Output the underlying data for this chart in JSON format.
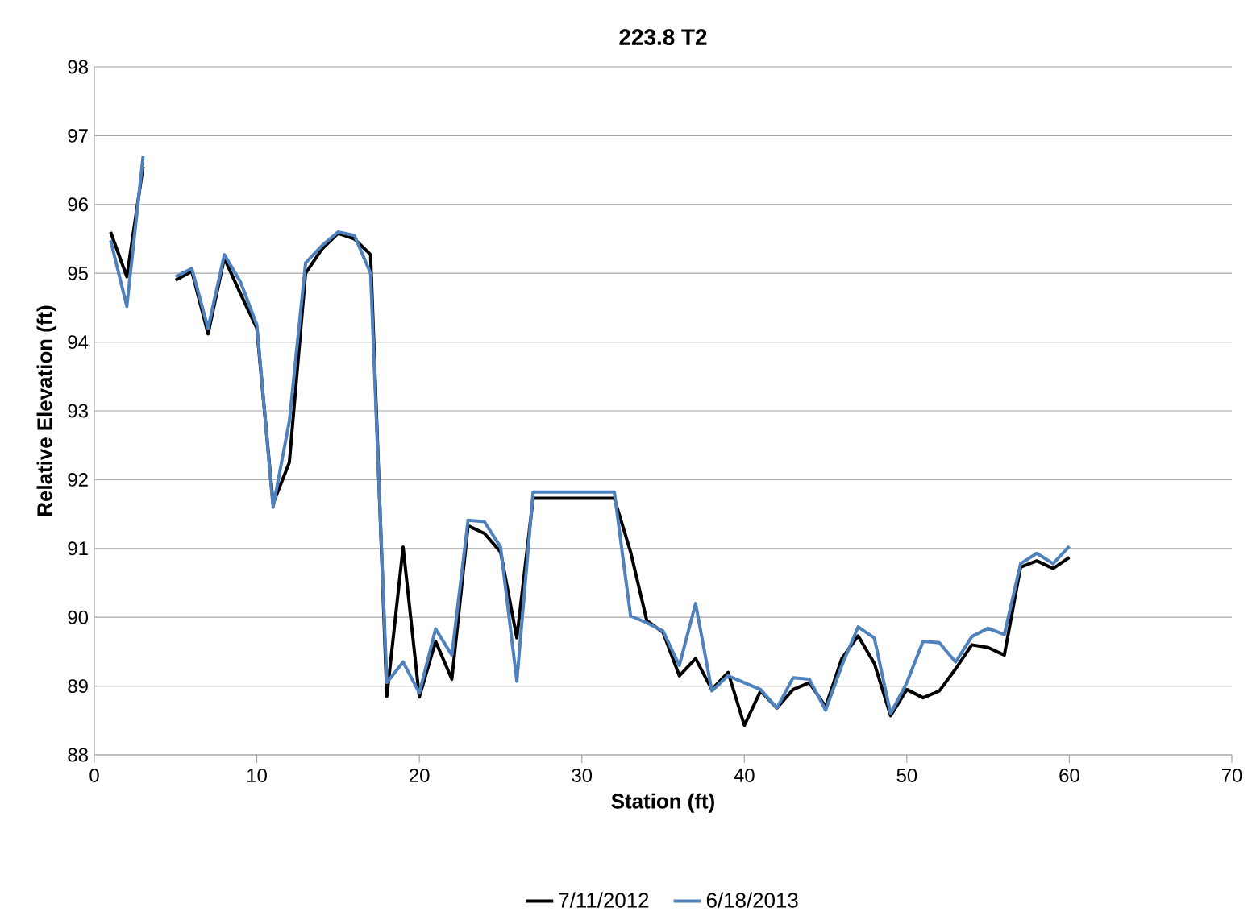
{
  "chart_data": {
    "type": "line",
    "title": "**223.8 T2**",
    "xlabel": "**Station (ft)**",
    "ylabel": "**Relative Elevation (ft)**",
    "x": [
      1,
      2,
      3,
      4,
      5,
      6,
      7,
      8,
      9,
      10,
      11,
      12,
      13,
      14,
      15,
      16,
      17,
      18,
      19,
      20,
      21,
      22,
      23,
      24,
      25,
      26,
      27,
      28,
      29,
      30,
      31,
      32,
      33,
      34,
      35,
      36,
      37,
      38,
      39,
      40,
      41,
      42,
      43,
      44,
      45,
      46,
      47,
      48,
      49,
      50,
      51,
      52,
      53,
      54,
      55,
      56,
      57,
      58,
      59,
      60
    ],
    "series": [
      {
        "name": "7/11/2012",
        "color": "#000000",
        "values": [
          95.6,
          94.95,
          96.55,
          null,
          94.9,
          95.03,
          94.12,
          95.22,
          94.7,
          94.2,
          91.65,
          92.25,
          95.0,
          95.35,
          95.58,
          95.5,
          95.27,
          88.85,
          91.02,
          88.84,
          89.65,
          89.1,
          91.33,
          91.22,
          90.95,
          89.7,
          91.73,
          91.73,
          91.73,
          91.73,
          91.73,
          91.73,
          90.95,
          89.95,
          89.78,
          89.15,
          89.4,
          88.95,
          89.2,
          88.43,
          88.93,
          88.68,
          88.95,
          89.05,
          88.7,
          89.4,
          89.73,
          89.33,
          88.57,
          88.95,
          88.83,
          88.93,
          89.25,
          89.6,
          89.56,
          89.45,
          90.73,
          90.82,
          90.71,
          90.87
        ]
      },
      {
        "name": "6/18/2013",
        "color": "#4f81bd",
        "values": [
          95.48,
          94.52,
          96.7,
          null,
          94.95,
          95.07,
          94.2,
          95.27,
          94.87,
          94.25,
          91.6,
          92.85,
          95.15,
          95.4,
          95.6,
          95.55,
          95.0,
          89.05,
          89.35,
          88.9,
          89.83,
          89.45,
          91.41,
          91.39,
          91.02,
          89.07,
          91.82,
          91.82,
          91.82,
          91.82,
          91.82,
          91.82,
          90.02,
          89.92,
          89.8,
          89.3,
          90.2,
          88.93,
          89.15,
          89.05,
          88.95,
          88.68,
          89.12,
          89.1,
          88.65,
          89.3,
          89.86,
          89.7,
          88.6,
          89.05,
          89.65,
          89.63,
          89.35,
          89.72,
          89.84,
          89.75,
          90.78,
          90.93,
          90.78,
          91.03
        ]
      }
    ],
    "xlim": [
      0,
      70
    ],
    "xticks": [
      0,
      10,
      20,
      30,
      40,
      50,
      60,
      70
    ],
    "ylim": [
      88,
      98
    ],
    "yticks": [
      88,
      89,
      90,
      91,
      92,
      93,
      94,
      95,
      96,
      97,
      98
    ],
    "grid": "y",
    "legend": "bottom",
    "marker": "none",
    "line_style": "solid"
  }
}
